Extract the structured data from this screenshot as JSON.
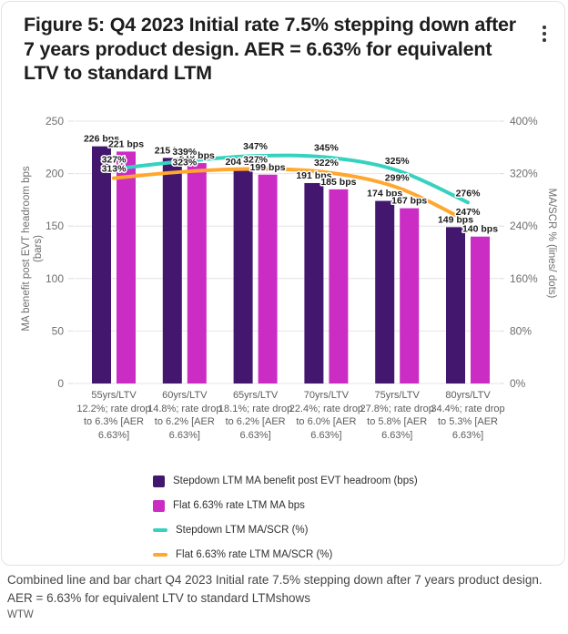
{
  "header": {
    "title": "Figure 5: Q4 2023 Initial rate 7.5% stepping down after 7 years product design. AER = 6.63% for equivalent LTV to standard LTM",
    "more_options_icon": "kebab-vertical-dots"
  },
  "chart_data": {
    "type": "bar+line combo",
    "title": "Q4 2023 Initial rate 7.5% stepping down after 7 years product design. AER = 6.63% for equivalent LTV to standard LTM",
    "categories": [
      "55yrs/LTV 12.2%; rate drop to 6.3% [AER 6.63%]",
      "60yrs/LTV 14.8%; rate drop to 6.2% [AER 6.63%]",
      "65yrs/LTV 18.1%; rate drop to 6.2% [AER 6.63%]",
      "70yrs/LTV 22.4%; rate drop to 6.0% [AER 6.63%]",
      "75yrs/LTV 27.8%; rate drop to 5.8% [AER 6.63%]",
      "80yrs/LTV 34.4%; rate drop to 5.3% [AER 6.63%]"
    ],
    "series": [
      {
        "name": "Stepdown LTM MA benefit post EVT headroom (bps)",
        "type": "bar",
        "axis": "left",
        "color": "#43176e",
        "values": [
          226,
          215,
          204,
          191,
          174,
          149
        ],
        "labels": [
          "226 bps",
          "215 bps",
          "204 bps",
          "191 bps",
          "174 bps",
          "149 bps"
        ]
      },
      {
        "name": "Flat 6.63% rate LTM MA bps",
        "type": "bar",
        "axis": "left",
        "color": "#cb2cc3",
        "values": [
          221,
          210,
          199,
          185,
          167,
          140
        ],
        "labels": [
          "221 bps",
          "210 bps",
          "199 bps",
          "185 bps",
          "167 bps",
          "140 bps"
        ]
      },
      {
        "name": "Stepdown LTM MA/SCR (%)",
        "type": "line",
        "axis": "right",
        "color": "#36d2c0",
        "values": [
          327,
          339,
          347,
          345,
          325,
          276
        ],
        "labels": [
          "327%",
          "339%",
          "347%",
          "345%",
          "325%",
          "276%"
        ]
      },
      {
        "name": "Flat 6.63% rate LTM MA/SCR (%)",
        "type": "line",
        "axis": "right",
        "color": "#ffa72e",
        "values": [
          313,
          323,
          327,
          322,
          299,
          247
        ],
        "labels": [
          "313%",
          "323%",
          "327%",
          "322%",
          "299%",
          "247%"
        ]
      }
    ],
    "left_axis": {
      "label": "MA benefit post EVT headroom bps (bars)",
      "label_line1": "MA benefit post EVT headroom bps",
      "label_line2": "(bars)",
      "ticks": [
        "0",
        "50",
        "100",
        "150",
        "200",
        "250"
      ],
      "min": 0,
      "max": 250
    },
    "right_axis": {
      "label": "MA/SCR % (lines/ dots)",
      "ticks": [
        "0%",
        "80%",
        "160%",
        "240%",
        "320%",
        "400%"
      ],
      "min": 0,
      "max": 400
    },
    "grid": "horizontal",
    "legend_position": "bottom"
  },
  "legend": {
    "items": [
      {
        "label": "Stepdown LTM MA benefit post EVT headroom (bps)",
        "color": "#43176e",
        "shape": "box"
      },
      {
        "label": "Flat 6.63% rate LTM MA bps",
        "color": "#cb2cc3",
        "shape": "box"
      },
      {
        "label": "Stepdown LTM MA/SCR (%)",
        "color": "#36d2c0",
        "shape": "line"
      },
      {
        "label": "Flat 6.63% rate LTM MA/SCR (%)",
        "color": "#ffa72e",
        "shape": "line"
      }
    ]
  },
  "caption": {
    "text": "Combined line and bar chart Q4 2023 Initial rate 7.5% stepping down after 7 years product design. AER = 6.63% for equivalent LTV to standard LTMshows",
    "source": "WTW"
  }
}
